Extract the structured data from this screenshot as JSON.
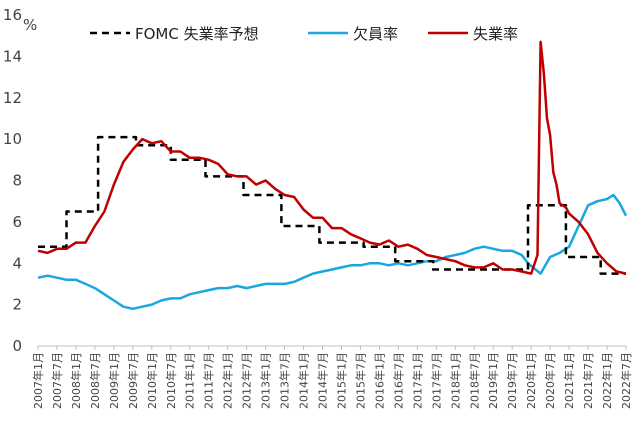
{
  "chart_data": {
    "type": "line",
    "ylabel": "%",
    "ylim": [
      0,
      16
    ],
    "yticks": [
      0,
      2,
      4,
      6,
      8,
      10,
      12,
      14,
      16
    ],
    "x_range": [
      "2007年1月",
      "2022年7月"
    ],
    "xtick_labels": [
      "2007年1月",
      "2007年7月",
      "2008年1月",
      "2008年7月",
      "2009年1月",
      "2009年7月",
      "2010年1月",
      "2010年7月",
      "2011年1月",
      "2011年7月",
      "2012年1月",
      "2012年7月",
      "2013年1月",
      "2013年7月",
      "2014年1月",
      "2014年7月",
      "2015年1月",
      "2015年7月",
      "2016年1月",
      "2016年7月",
      "2017年1月",
      "2017年7月",
      "2018年1月",
      "2018年7月",
      "2019年1月",
      "2019年7月",
      "2020年1月",
      "2020年7月",
      "2021年1月",
      "2021年7月",
      "2022年1月",
      "2022年7月"
    ],
    "grid": false,
    "legend_position": "top",
    "series": [
      {
        "name": "FOMC 失業率予想",
        "color": "#000000",
        "style": "dashed",
        "points": [
          [
            "2007-01",
            4.8
          ],
          [
            "2007-10",
            4.8
          ],
          [
            "2007-10",
            6.5
          ],
          [
            "2008-08",
            6.5
          ],
          [
            "2008-08",
            10.1
          ],
          [
            "2009-08",
            10.1
          ],
          [
            "2009-08",
            9.7
          ],
          [
            "2010-07",
            9.7
          ],
          [
            "2010-07",
            9.0
          ],
          [
            "2011-06",
            9.0
          ],
          [
            "2011-06",
            8.2
          ],
          [
            "2012-06",
            8.2
          ],
          [
            "2012-06",
            7.3
          ],
          [
            "2013-06",
            7.3
          ],
          [
            "2013-06",
            5.8
          ],
          [
            "2014-06",
            5.8
          ],
          [
            "2014-06",
            5.0
          ],
          [
            "2015-08",
            5.0
          ],
          [
            "2015-08",
            4.8
          ],
          [
            "2016-06",
            4.8
          ],
          [
            "2016-06",
            4.1
          ],
          [
            "2017-06",
            4.1
          ],
          [
            "2017-06",
            3.7
          ],
          [
            "2019-12",
            3.7
          ],
          [
            "2019-12",
            6.8
          ],
          [
            "2020-12",
            6.8
          ],
          [
            "2020-12",
            4.3
          ],
          [
            "2021-11",
            4.3
          ],
          [
            "2021-11",
            3.5
          ],
          [
            "2022-07",
            3.5
          ]
        ]
      },
      {
        "name": "欠員率",
        "color": "#1aa7e0",
        "style": "solid",
        "points": [
          [
            "2007-01",
            3.3
          ],
          [
            "2007-04",
            3.4
          ],
          [
            "2007-07",
            3.3
          ],
          [
            "2007-10",
            3.2
          ],
          [
            "2008-01",
            3.2
          ],
          [
            "2008-04",
            3.0
          ],
          [
            "2008-07",
            2.8
          ],
          [
            "2008-10",
            2.5
          ],
          [
            "2009-01",
            2.2
          ],
          [
            "2009-04",
            1.9
          ],
          [
            "2009-07",
            1.8
          ],
          [
            "2009-10",
            1.9
          ],
          [
            "2010-01",
            2.0
          ],
          [
            "2010-04",
            2.2
          ],
          [
            "2010-07",
            2.3
          ],
          [
            "2010-10",
            2.3
          ],
          [
            "2011-01",
            2.5
          ],
          [
            "2011-04",
            2.6
          ],
          [
            "2011-07",
            2.7
          ],
          [
            "2011-10",
            2.8
          ],
          [
            "2012-01",
            2.8
          ],
          [
            "2012-04",
            2.9
          ],
          [
            "2012-07",
            2.8
          ],
          [
            "2012-10",
            2.9
          ],
          [
            "2013-01",
            3.0
          ],
          [
            "2013-04",
            3.0
          ],
          [
            "2013-07",
            3.0
          ],
          [
            "2013-10",
            3.1
          ],
          [
            "2014-01",
            3.3
          ],
          [
            "2014-04",
            3.5
          ],
          [
            "2014-07",
            3.6
          ],
          [
            "2014-10",
            3.7
          ],
          [
            "2015-01",
            3.8
          ],
          [
            "2015-04",
            3.9
          ],
          [
            "2015-07",
            3.9
          ],
          [
            "2015-10",
            4.0
          ],
          [
            "2016-01",
            4.0
          ],
          [
            "2016-04",
            3.9
          ],
          [
            "2016-07",
            4.0
          ],
          [
            "2016-10",
            3.9
          ],
          [
            "2017-01",
            4.0
          ],
          [
            "2017-04",
            4.1
          ],
          [
            "2017-07",
            4.1
          ],
          [
            "2017-10",
            4.3
          ],
          [
            "2018-01",
            4.4
          ],
          [
            "2018-04",
            4.5
          ],
          [
            "2018-07",
            4.7
          ],
          [
            "2018-10",
            4.8
          ],
          [
            "2019-01",
            4.7
          ],
          [
            "2019-04",
            4.6
          ],
          [
            "2019-07",
            4.6
          ],
          [
            "2019-10",
            4.4
          ],
          [
            "2019-12",
            4.0
          ],
          [
            "2020-04",
            3.5
          ],
          [
            "2020-07",
            4.3
          ],
          [
            "2020-10",
            4.5
          ],
          [
            "2021-01",
            4.8
          ],
          [
            "2021-04",
            5.8
          ],
          [
            "2021-07",
            6.8
          ],
          [
            "2021-10",
            7.0
          ],
          [
            "2022-01",
            7.1
          ],
          [
            "2022-03",
            7.3
          ],
          [
            "2022-05",
            6.9
          ],
          [
            "2022-07",
            6.3
          ]
        ]
      },
      {
        "name": "失業率",
        "color": "#c00000",
        "style": "solid",
        "points": [
          [
            "2007-01",
            4.6
          ],
          [
            "2007-04",
            4.5
          ],
          [
            "2007-07",
            4.7
          ],
          [
            "2007-10",
            4.7
          ],
          [
            "2008-01",
            5.0
          ],
          [
            "2008-04",
            5.0
          ],
          [
            "2008-07",
            5.8
          ],
          [
            "2008-10",
            6.5
          ],
          [
            "2009-01",
            7.8
          ],
          [
            "2009-04",
            8.9
          ],
          [
            "2009-07",
            9.5
          ],
          [
            "2009-10",
            10.0
          ],
          [
            "2010-01",
            9.8
          ],
          [
            "2010-04",
            9.9
          ],
          [
            "2010-07",
            9.4
          ],
          [
            "2010-10",
            9.4
          ],
          [
            "2011-01",
            9.1
          ],
          [
            "2011-04",
            9.1
          ],
          [
            "2011-07",
            9.0
          ],
          [
            "2011-10",
            8.8
          ],
          [
            "2012-01",
            8.3
          ],
          [
            "2012-04",
            8.2
          ],
          [
            "2012-07",
            8.2
          ],
          [
            "2012-10",
            7.8
          ],
          [
            "2013-01",
            8.0
          ],
          [
            "2013-04",
            7.6
          ],
          [
            "2013-07",
            7.3
          ],
          [
            "2013-10",
            7.2
          ],
          [
            "2014-01",
            6.6
          ],
          [
            "2014-04",
            6.2
          ],
          [
            "2014-07",
            6.2
          ],
          [
            "2014-10",
            5.7
          ],
          [
            "2015-01",
            5.7
          ],
          [
            "2015-04",
            5.4
          ],
          [
            "2015-07",
            5.2
          ],
          [
            "2015-10",
            5.0
          ],
          [
            "2016-01",
            4.9
          ],
          [
            "2016-04",
            5.1
          ],
          [
            "2016-07",
            4.8
          ],
          [
            "2016-10",
            4.9
          ],
          [
            "2017-01",
            4.7
          ],
          [
            "2017-04",
            4.4
          ],
          [
            "2017-07",
            4.3
          ],
          [
            "2017-10",
            4.2
          ],
          [
            "2018-01",
            4.1
          ],
          [
            "2018-04",
            3.9
          ],
          [
            "2018-07",
            3.8
          ],
          [
            "2018-10",
            3.8
          ],
          [
            "2019-01",
            4.0
          ],
          [
            "2019-04",
            3.7
          ],
          [
            "2019-07",
            3.7
          ],
          [
            "2019-10",
            3.6
          ],
          [
            "2020-01",
            3.5
          ],
          [
            "2020-03",
            4.4
          ],
          [
            "2020-04",
            14.7
          ],
          [
            "2020-05",
            13.2
          ],
          [
            "2020-06",
            11.0
          ],
          [
            "2020-07",
            10.2
          ],
          [
            "2020-08",
            8.4
          ],
          [
            "2020-09",
            7.8
          ],
          [
            "2020-10",
            6.9
          ],
          [
            "2020-12",
            6.7
          ],
          [
            "2021-01",
            6.4
          ],
          [
            "2021-04",
            6.0
          ],
          [
            "2021-07",
            5.4
          ],
          [
            "2021-10",
            4.5
          ],
          [
            "2022-01",
            4.0
          ],
          [
            "2022-04",
            3.6
          ],
          [
            "2022-07",
            3.5
          ]
        ]
      }
    ]
  }
}
